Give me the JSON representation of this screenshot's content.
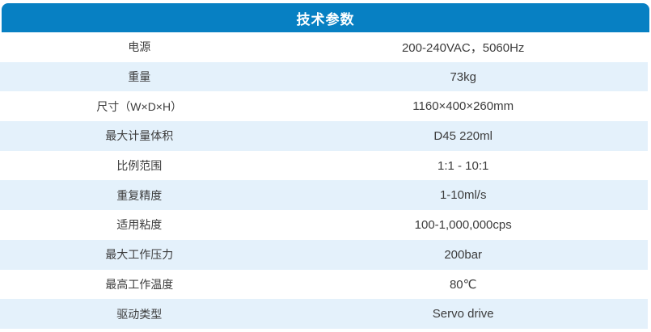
{
  "header": {
    "title": "技术参数",
    "bg_color": "#0780c3",
    "text_color": "#ffffff"
  },
  "table": {
    "alt_row_color": "#e4f1fb",
    "text_color": "#3c3c3c",
    "rows": [
      {
        "label": "电源",
        "value": "200-240VAC，5060Hz"
      },
      {
        "label": "重量",
        "value": "73kg"
      },
      {
        "label": "尺寸（W×D×H）",
        "value": "1160×400×260mm"
      },
      {
        "label": "最大计量体积",
        "value": "D45 220ml"
      },
      {
        "label": "比例范围",
        "value": "1:1 - 10:1"
      },
      {
        "label": "重复精度",
        "value": "1-10ml/s"
      },
      {
        "label": "适用粘度",
        "value": "100-1,000,000cps"
      },
      {
        "label": "最大工作压力",
        "value": "200bar"
      },
      {
        "label": "最高工作温度",
        "value": "80℃"
      },
      {
        "label": "驱动类型",
        "value": "Servo drive"
      }
    ]
  }
}
